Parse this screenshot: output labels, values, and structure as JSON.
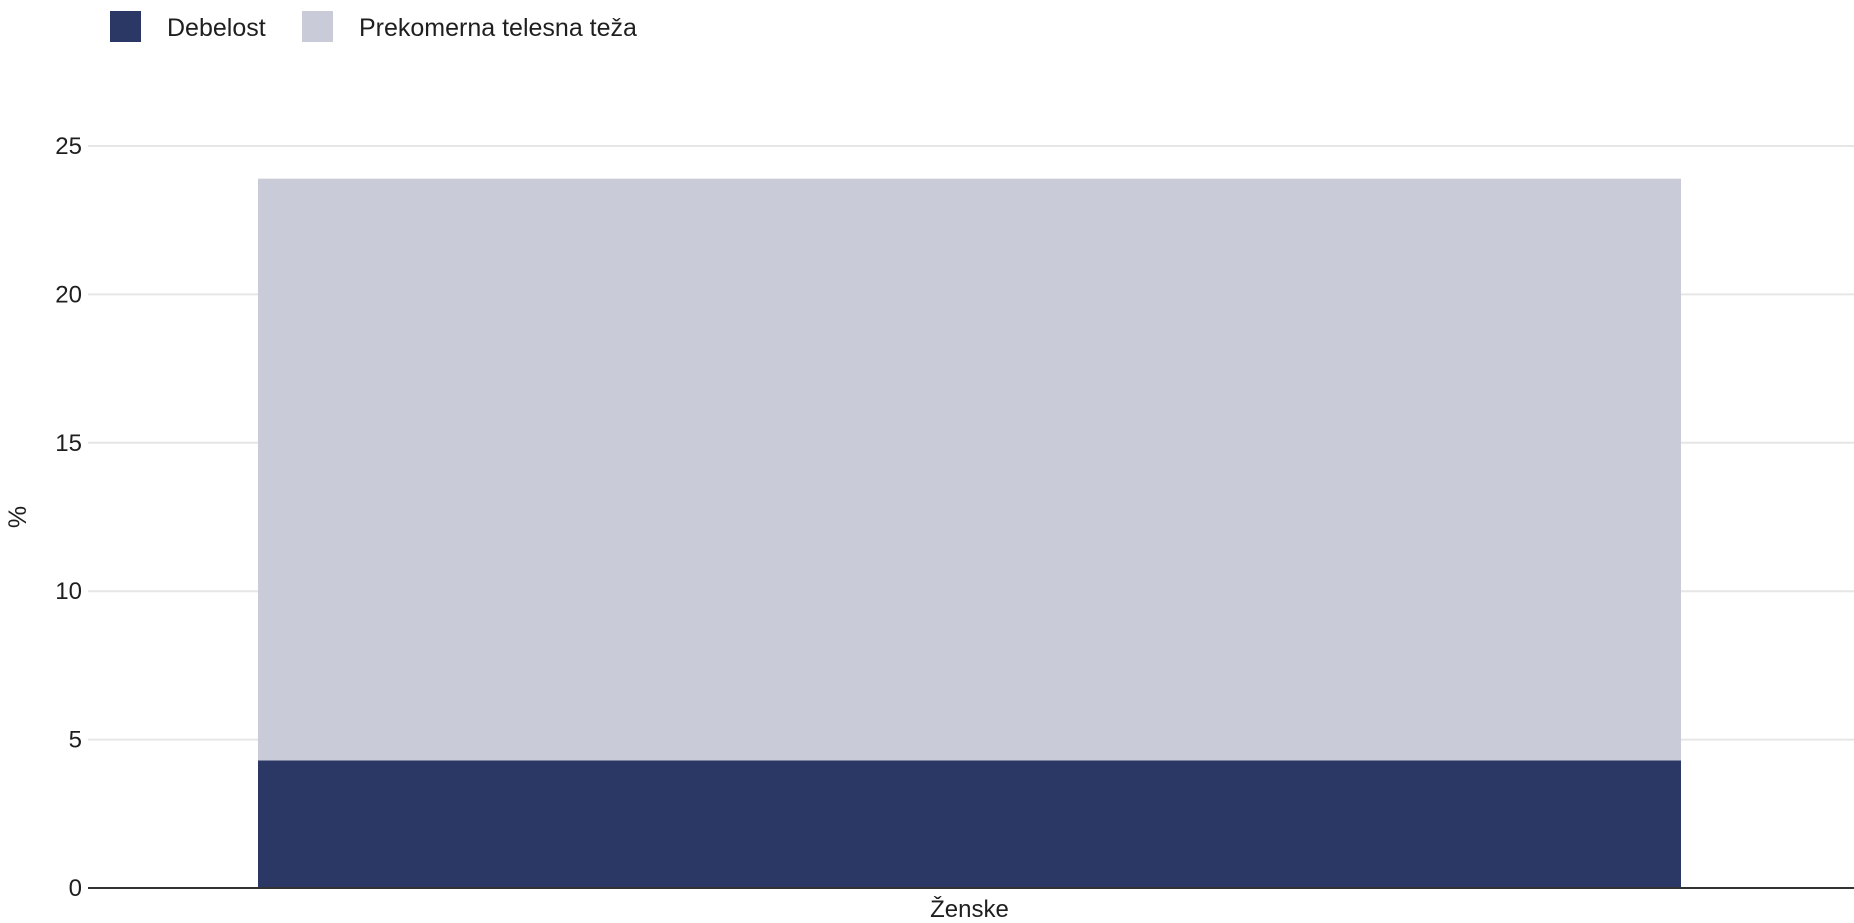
{
  "chart_data": {
    "type": "bar",
    "stacked": true,
    "categories": [
      "Ženske"
    ],
    "series": [
      {
        "name": "Debelost",
        "values": [
          4.3
        ],
        "color": "#2b3765"
      },
      {
        "name": "Prekomerna telesna teža",
        "values": [
          19.6
        ],
        "color": "#c9ccd8"
      }
    ],
    "ylabel": "%",
    "xlabel": "",
    "ylim": [
      0,
      25
    ],
    "yticks": [
      0,
      5,
      10,
      15,
      20,
      25
    ],
    "grid": true,
    "legend_position": "top-left"
  }
}
